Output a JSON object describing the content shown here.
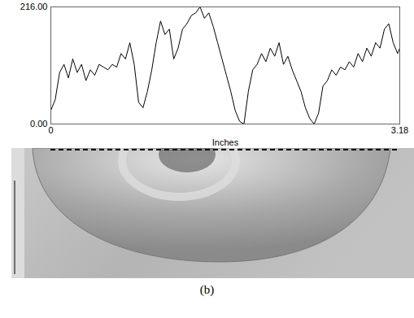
{
  "chart_data": {
    "type": "line",
    "x_label": "Inches",
    "x": [
      0,
      0.04,
      0.08,
      0.12,
      0.16,
      0.2,
      0.24,
      0.28,
      0.32,
      0.36,
      0.4,
      0.44,
      0.48,
      0.52,
      0.56,
      0.6,
      0.64,
      0.68,
      0.72,
      0.76,
      0.8,
      0.84,
      0.88,
      0.92,
      0.96,
      1.0,
      1.04,
      1.08,
      1.12,
      1.16,
      1.2,
      1.24,
      1.28,
      1.32,
      1.36,
      1.4,
      1.44,
      1.48,
      1.52,
      1.56,
      1.6,
      1.64,
      1.68,
      1.72,
      1.76,
      1.8,
      1.84,
      1.88,
      1.92,
      1.96,
      2.0,
      2.04,
      2.08,
      2.12,
      2.16,
      2.2,
      2.24,
      2.28,
      2.32,
      2.36,
      2.4,
      2.44,
      2.48,
      2.52,
      2.56,
      2.6,
      2.64,
      2.68,
      2.72,
      2.76,
      2.8,
      2.84,
      2.88,
      2.92,
      2.96,
      3.0,
      3.04,
      3.08,
      3.12,
      3.16,
      3.18
    ],
    "values": [
      25,
      45,
      95,
      110,
      85,
      120,
      95,
      110,
      80,
      100,
      90,
      110,
      105,
      100,
      110,
      105,
      130,
      120,
      150,
      110,
      40,
      30,
      60,
      100,
      150,
      190,
      165,
      175,
      120,
      140,
      175,
      185,
      200,
      205,
      216,
      195,
      205,
      180,
      150,
      120,
      90,
      60,
      25,
      5,
      0,
      60,
      100,
      110,
      130,
      115,
      140,
      125,
      150,
      110,
      125,
      100,
      80,
      60,
      30,
      10,
      0,
      20,
      70,
      80,
      100,
      90,
      105,
      100,
      115,
      105,
      130,
      115,
      140,
      125,
      150,
      140,
      175,
      185,
      150,
      130,
      140
    ],
    "color": "#000000",
    "xlim": [
      0,
      3.18
    ],
    "xticks": [
      0,
      3.18
    ],
    "ylim": [
      0,
      216
    ],
    "yticks": [
      {
        "value": 0,
        "label": "0.00"
      },
      {
        "value": 216,
        "label": "216.00"
      }
    ],
    "grid": false
  },
  "caption": "(b)"
}
